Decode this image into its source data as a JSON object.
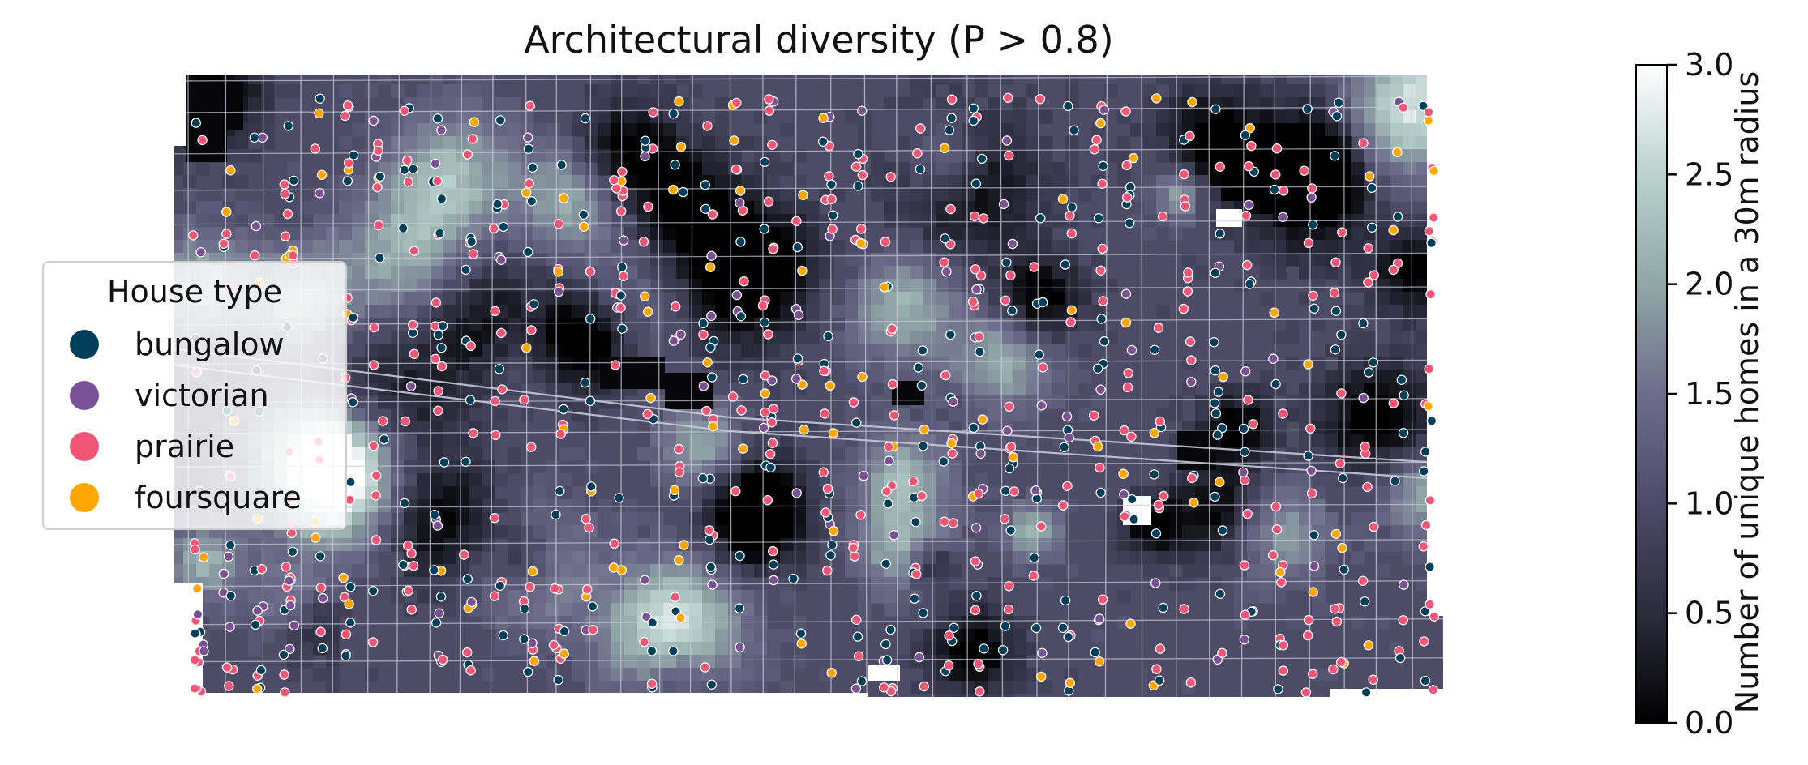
{
  "title": "Architectural diversity (P > 0.8)",
  "legend": {
    "title": "House type",
    "items": [
      {
        "label": "bungalow",
        "color": "#003f5c"
      },
      {
        "label": "victorian",
        "color": "#7a5195"
      },
      {
        "label": "prairie",
        "color": "#ef5675"
      },
      {
        "label": "foursquare",
        "color": "#ffa600"
      }
    ]
  },
  "colorbar": {
    "label": "Number of unique homes in a 30m radius",
    "min": 0.0,
    "max": 3.0,
    "ticks": [
      "0.0",
      "0.5",
      "1.0",
      "1.5",
      "2.0",
      "2.5",
      "3.0"
    ],
    "colormap": [
      "#000000",
      "#2a2a3a",
      "#4c4a67",
      "#6d6d8a",
      "#8fa5a6",
      "#b9d1cd",
      "#ffffff"
    ]
  },
  "map": {
    "background_color": "#4e4b66",
    "street_color": "#c8c8d8",
    "house_counts": {
      "bungalow": 300,
      "victorian": 110,
      "prairie": 400,
      "foursquare": 110
    }
  }
}
